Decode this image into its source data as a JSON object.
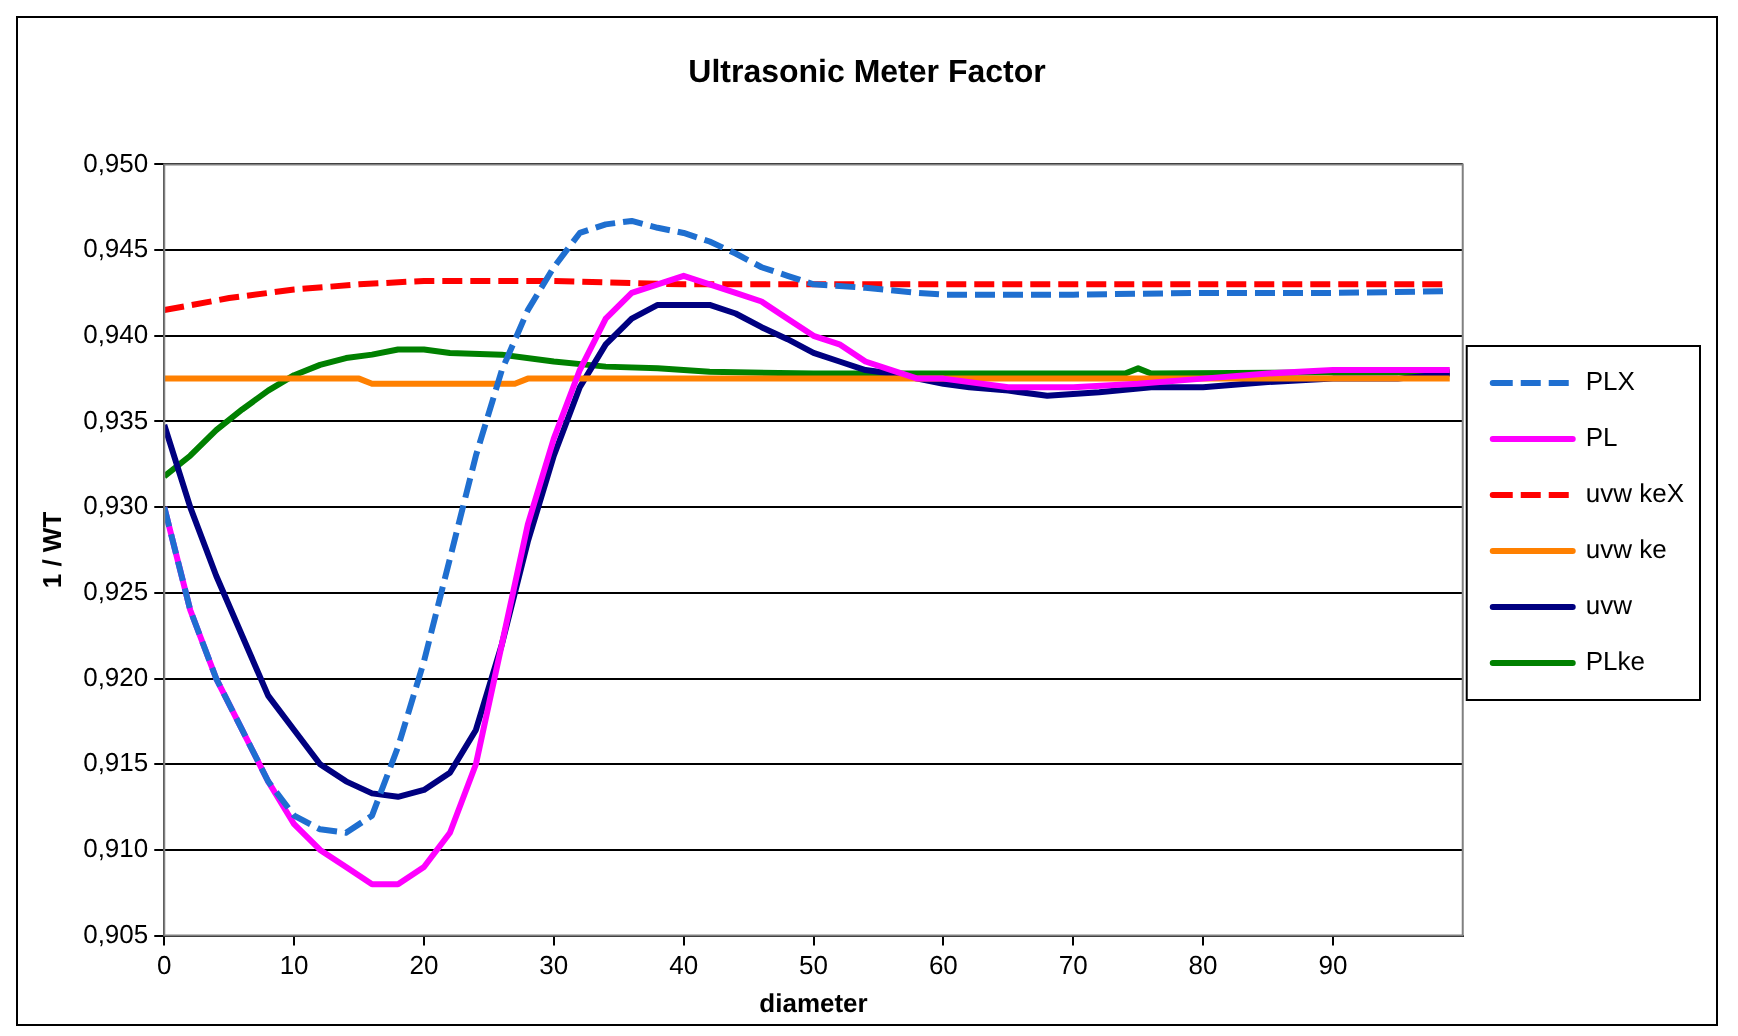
{
  "chart_data": {
    "type": "line",
    "title": "Ultrasonic Meter Factor",
    "xlabel": "diameter",
    "ylabel": "1 / WT",
    "xlim": [
      0,
      100
    ],
    "xticks": [
      0,
      10,
      20,
      30,
      40,
      50,
      60,
      70,
      80,
      90
    ],
    "ylim": [
      0.905,
      0.95
    ],
    "yticks": [
      {
        "value": 0.905,
        "label": "0,905"
      },
      {
        "value": 0.91,
        "label": "0,910"
      },
      {
        "value": 0.915,
        "label": "0,915"
      },
      {
        "value": 0.92,
        "label": "0,920"
      },
      {
        "value": 0.925,
        "label": "0,925"
      },
      {
        "value": 0.93,
        "label": "0,930"
      },
      {
        "value": 0.935,
        "label": "0,935"
      },
      {
        "value": 0.94,
        "label": "0,940"
      },
      {
        "value": 0.945,
        "label": "0,945"
      },
      {
        "value": 0.95,
        "label": "0,950"
      }
    ],
    "grid": "y",
    "legend": "right",
    "marker": "none",
    "series": [
      {
        "name": "PLX",
        "color": "#1f6fd0",
        "line_style": "dashed",
        "x": [
          0,
          2,
          4,
          6,
          8,
          10,
          12,
          14,
          16,
          18,
          20,
          22,
          24,
          26,
          28,
          30,
          32,
          34,
          36,
          38,
          40,
          42,
          44,
          46,
          48,
          50,
          54,
          58,
          60,
          70,
          80,
          90,
          99
        ],
        "values": [
          0.93,
          0.924,
          0.92,
          0.917,
          0.914,
          0.912,
          0.9112,
          0.911,
          0.912,
          0.916,
          0.921,
          0.927,
          0.933,
          0.938,
          0.9415,
          0.944,
          0.946,
          0.9465,
          0.9467,
          0.9463,
          0.946,
          0.9455,
          0.9448,
          0.944,
          0.9435,
          0.943,
          0.9428,
          0.9425,
          0.9424,
          0.9424,
          0.9425,
          0.9425,
          0.9426
        ]
      },
      {
        "name": "PL",
        "color": "#ff00ff",
        "line_style": "solid",
        "x": [
          0,
          2,
          4,
          6,
          8,
          10,
          12,
          14,
          16,
          18,
          20,
          22,
          24,
          26,
          28,
          30,
          32,
          34,
          36,
          38,
          40,
          42,
          44,
          46,
          48,
          50,
          52,
          54,
          56,
          58,
          60,
          65,
          70,
          75,
          80,
          85,
          90,
          95,
          99
        ],
        "values": [
          0.93,
          0.924,
          0.92,
          0.917,
          0.914,
          0.9115,
          0.91,
          0.909,
          0.908,
          0.908,
          0.909,
          0.911,
          0.915,
          0.922,
          0.929,
          0.934,
          0.938,
          0.941,
          0.9425,
          0.943,
          0.9435,
          0.943,
          0.9425,
          0.942,
          0.941,
          0.94,
          0.9395,
          0.9385,
          0.938,
          0.9375,
          0.9375,
          0.937,
          0.937,
          0.9372,
          0.9375,
          0.9378,
          0.938,
          0.938,
          0.938
        ]
      },
      {
        "name": "uvw keX",
        "color": "#ff0000",
        "line_style": "dashed",
        "x": [
          0,
          5,
          10,
          15,
          20,
          30,
          40,
          50,
          60,
          70,
          80,
          90,
          99
        ],
        "values": [
          0.9415,
          0.9422,
          0.9427,
          0.943,
          0.9432,
          0.9432,
          0.943,
          0.943,
          0.943,
          0.943,
          0.943,
          0.943,
          0.943
        ]
      },
      {
        "name": "uvw ke",
        "color": "#ff8000",
        "line_style": "solid",
        "x": [
          0,
          15,
          16,
          27,
          28,
          50,
          99
        ],
        "values": [
          0.9375,
          0.9375,
          0.9372,
          0.9372,
          0.9375,
          0.9375,
          0.9375
        ]
      },
      {
        "name": "uvw",
        "color": "#000080",
        "line_style": "solid",
        "x": [
          0,
          2,
          4,
          6,
          8,
          10,
          12,
          14,
          16,
          18,
          20,
          22,
          24,
          26,
          28,
          30,
          32,
          34,
          36,
          38,
          40,
          42,
          44,
          46,
          48,
          50,
          52,
          54,
          56,
          58,
          60,
          62,
          65,
          68,
          72,
          76,
          80,
          85,
          90,
          95,
          99
        ],
        "values": [
          0.9348,
          0.93,
          0.926,
          0.9225,
          0.919,
          0.917,
          0.915,
          0.914,
          0.9133,
          0.9131,
          0.9135,
          0.9145,
          0.917,
          0.922,
          0.928,
          0.933,
          0.937,
          0.9395,
          0.941,
          0.9418,
          0.9418,
          0.9418,
          0.9413,
          0.9405,
          0.9398,
          0.939,
          0.9385,
          0.938,
          0.9378,
          0.9375,
          0.9372,
          0.937,
          0.9368,
          0.9365,
          0.9367,
          0.937,
          0.937,
          0.9373,
          0.9375,
          0.9375,
          0.9378
        ]
      },
      {
        "name": "PLke",
        "color": "#008000",
        "line_style": "solid",
        "x": [
          0,
          2,
          4,
          6,
          8,
          10,
          12,
          14,
          16,
          18,
          20,
          22,
          26,
          30,
          34,
          38,
          42,
          50,
          60,
          74,
          75,
          76,
          99
        ],
        "values": [
          0.9318,
          0.933,
          0.9345,
          0.9357,
          0.9368,
          0.9377,
          0.9383,
          0.9387,
          0.9389,
          0.9392,
          0.9392,
          0.939,
          0.9389,
          0.9385,
          0.9382,
          0.9381,
          0.9379,
          0.9378,
          0.9378,
          0.9378,
          0.9381,
          0.9378,
          0.9379
        ]
      }
    ]
  }
}
